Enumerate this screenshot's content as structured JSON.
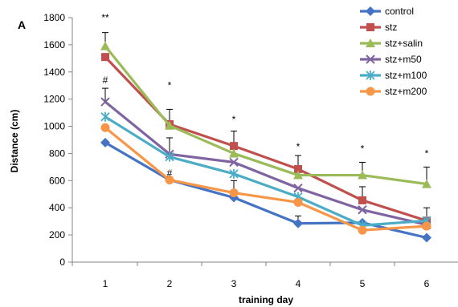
{
  "chart_data": {
    "type": "line",
    "panel_label": "A",
    "xlabel": "training day",
    "ylabel": "Distance (cm)",
    "categories": [
      "1",
      "2",
      "3",
      "4",
      "5",
      "6"
    ],
    "ylim": [
      0,
      1800
    ],
    "yticks": [
      "0",
      "200",
      "400",
      "600",
      "800",
      "1000",
      "1200",
      "1400",
      "1600",
      "1800"
    ],
    "grid": false,
    "legend_position": "top-right",
    "series": [
      {
        "name": "control",
        "color": "#4472C4",
        "marker": "diamond",
        "values": [
          880,
          605,
          475,
          285,
          290,
          180
        ],
        "errors": [
          0,
          0,
          0,
          55,
          0,
          0
        ]
      },
      {
        "name": "stz",
        "color": "#C0504D",
        "marker": "square",
        "values": [
          1510,
          1015,
          855,
          685,
          455,
          305
        ],
        "errors": [
          0,
          110,
          110,
          100,
          100,
          95
        ]
      },
      {
        "name": "stz+salin",
        "color": "#9BBB59",
        "marker": "triangle",
        "values": [
          1590,
          1005,
          800,
          640,
          640,
          575
        ],
        "errors": [
          100,
          0,
          0,
          0,
          95,
          125
        ]
      },
      {
        "name": "stz+m50",
        "color": "#8064A2",
        "marker": "x",
        "values": [
          1180,
          795,
          735,
          545,
          385,
          275
        ],
        "errors": [
          100,
          120,
          0,
          0,
          0,
          0
        ]
      },
      {
        "name": "stz+m100",
        "color": "#4BACC6",
        "marker": "star",
        "values": [
          1070,
          775,
          650,
          480,
          270,
          305
        ],
        "errors": [
          0,
          0,
          0,
          0,
          0,
          0
        ]
      },
      {
        "name": "stz+m200",
        "color": "#F79646",
        "marker": "circle",
        "values": [
          990,
          605,
          510,
          440,
          235,
          265
        ],
        "errors": [
          0,
          0,
          90,
          0,
          0,
          0
        ]
      }
    ],
    "annotations": [
      {
        "text": "**",
        "x": "1",
        "y": 1800
      },
      {
        "text": "#",
        "x": "1",
        "y": 1340
      },
      {
        "text": "*",
        "x": "2",
        "y": 1300
      },
      {
        "text": "#",
        "x": "2",
        "y": 655
      },
      {
        "text": "*",
        "x": "3",
        "y": 1050
      },
      {
        "text": "*",
        "x": "4",
        "y": 850
      },
      {
        "text": "*",
        "x": "5",
        "y": 835
      },
      {
        "text": "*",
        "x": "6",
        "y": 800
      }
    ]
  }
}
